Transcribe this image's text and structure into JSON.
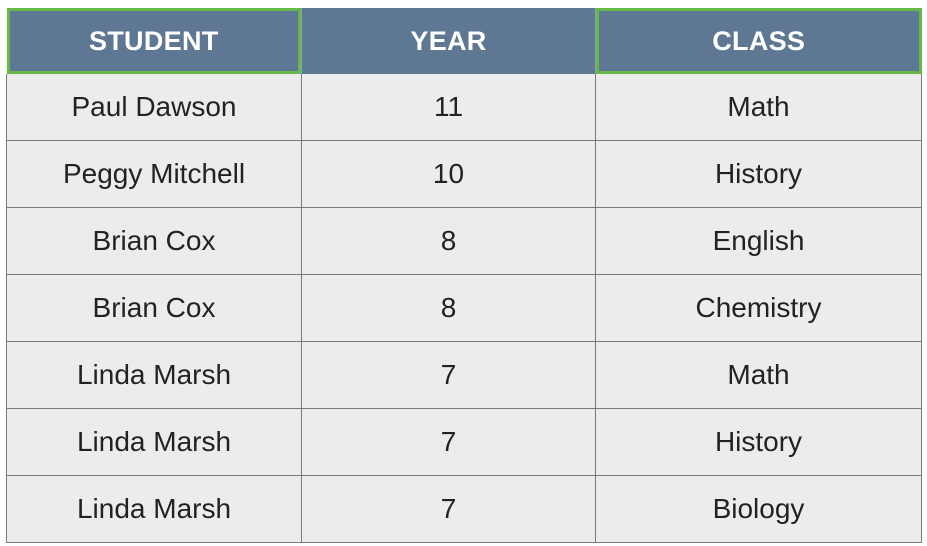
{
  "table": {
    "headers": [
      {
        "label": "STUDENT",
        "highlighted": true
      },
      {
        "label": "YEAR",
        "highlighted": false
      },
      {
        "label": "CLASS",
        "highlighted": true
      }
    ],
    "rows": [
      [
        "Paul Dawson",
        "11",
        "Math"
      ],
      [
        "Peggy Mitchell",
        "10",
        "History"
      ],
      [
        "Brian Cox",
        "8",
        "English"
      ],
      [
        "Brian Cox",
        "8",
        "Chemistry"
      ],
      [
        "Linda Marsh",
        "7",
        "Math"
      ],
      [
        "Linda Marsh",
        "7",
        "History"
      ],
      [
        "Linda Marsh",
        "7",
        "Biology"
      ]
    ]
  },
  "colors": {
    "header_background": "#5e7793",
    "header_text": "#ffffff",
    "highlight_border": "#66b848",
    "cell_background": "#ececec",
    "cell_border": "#7a7a7a"
  }
}
